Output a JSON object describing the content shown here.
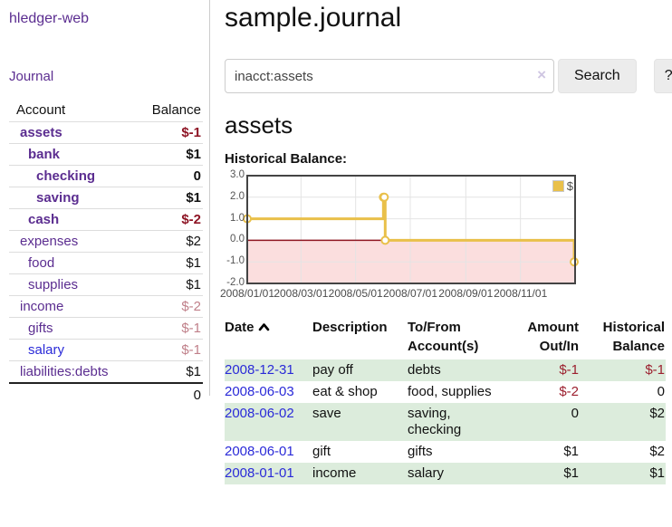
{
  "app": {
    "brand": "hledger-web",
    "nav_journal": "Journal"
  },
  "sidebar": {
    "header": {
      "account": "Account",
      "balance": "Balance"
    },
    "accounts": [
      {
        "name": "assets",
        "depth": 1,
        "balance": "$-1",
        "bold": true,
        "negative": "strong"
      },
      {
        "name": "bank",
        "depth": 2,
        "balance": "$1",
        "bold": true,
        "negative": "none"
      },
      {
        "name": "checking",
        "depth": 3,
        "balance": "0",
        "bold": true,
        "negative": "none"
      },
      {
        "name": "saving",
        "depth": 3,
        "balance": "$1",
        "bold": true,
        "negative": "none"
      },
      {
        "name": "cash",
        "depth": 2,
        "balance": "$-2",
        "bold": true,
        "negative": "strong"
      },
      {
        "name": "expenses",
        "depth": 1,
        "balance": "$2",
        "bold": false,
        "negative": "none"
      },
      {
        "name": "food",
        "depth": 2,
        "balance": "$1",
        "bold": false,
        "negative": "none"
      },
      {
        "name": "supplies",
        "depth": 2,
        "balance": "$1",
        "bold": false,
        "negative": "none"
      },
      {
        "name": "income",
        "depth": 1,
        "balance": "$-2",
        "bold": false,
        "negative": "muted"
      },
      {
        "name": "gifts",
        "depth": 2,
        "balance": "$-1",
        "bold": false,
        "negative": "muted"
      },
      {
        "name": "salary",
        "depth": 2,
        "balance": "$-1",
        "bold": false,
        "negative": "muted",
        "blue": true
      },
      {
        "name": "liabilities:debts",
        "depth": 1,
        "balance": "$1",
        "bold": false,
        "negative": "none"
      }
    ],
    "total": "0"
  },
  "header": {
    "title": "sample.journal"
  },
  "search": {
    "value": "inacct:assets",
    "clear_icon": "×",
    "search_label": "Search",
    "help_label": "?"
  },
  "account_page": {
    "title": "assets",
    "chart_label": "Historical Balance:"
  },
  "chart_data": {
    "type": "line",
    "title": "Historical Balance:",
    "legend": {
      "label": "$",
      "position": "top-right"
    },
    "x_axis": {
      "min_day": 0,
      "max_day": 366,
      "ticks": [
        {
          "day": 0,
          "label": "2008/01/01"
        },
        {
          "day": 60,
          "label": "2008/03/01"
        },
        {
          "day": 121,
          "label": "2008/05/01"
        },
        {
          "day": 182,
          "label": "2008/07/01"
        },
        {
          "day": 244,
          "label": "2008/09/01"
        },
        {
          "day": 305,
          "label": "2008/11/01"
        }
      ]
    },
    "y_axis": {
      "min": -2,
      "max": 3,
      "ticks": [
        {
          "value": 3,
          "label": "3.0"
        },
        {
          "value": 2,
          "label": "2.0"
        },
        {
          "value": 1,
          "label": "1.0"
        },
        {
          "value": 0,
          "label": "0.0"
        },
        {
          "value": -1,
          "label": "-1.0"
        },
        {
          "value": -2,
          "label": "-2.0"
        }
      ]
    },
    "series": [
      {
        "name": "$",
        "step": true,
        "color": "#e9c04a",
        "points": [
          {
            "date": "2008-01-01",
            "day": 0,
            "value": 1
          },
          {
            "date": "2008-06-01",
            "day": 152,
            "value": 2
          },
          {
            "date": "2008-06-02",
            "day": 153,
            "value": 2
          },
          {
            "date": "2008-06-03",
            "day": 154,
            "value": 0
          },
          {
            "date": "2008-12-31",
            "day": 365,
            "value": -1
          }
        ]
      }
    ],
    "colors": {
      "negative_region": "#fbdede",
      "zero_line": "#8f1722",
      "grid": "#e4e4e4",
      "plot_border": "#444444"
    }
  },
  "register": {
    "sort": "date-ascending",
    "columns": [
      {
        "label": "Date",
        "align": "left"
      },
      {
        "label": "Description",
        "align": "left"
      },
      {
        "label": "To/From\nAccount(s)",
        "align": "left"
      },
      {
        "label": "Amount\nOut/In",
        "align": "right"
      },
      {
        "label": "Historical\nBalance",
        "align": "right"
      }
    ],
    "rows": [
      {
        "date": "2008-12-31",
        "description": "pay off",
        "accounts": "debts",
        "amount": "$-1",
        "amount_negative": true,
        "balance": "$-1",
        "balance_negative": true
      },
      {
        "date": "2008-06-03",
        "description": "eat & shop",
        "accounts": "food, supplies",
        "amount": "$-2",
        "amount_negative": true,
        "balance": "0",
        "balance_negative": false
      },
      {
        "date": "2008-06-02",
        "description": "save",
        "accounts": "saving,\nchecking",
        "amount": "0",
        "amount_negative": false,
        "balance": "$2",
        "balance_negative": false
      },
      {
        "date": "2008-06-01",
        "description": "gift",
        "accounts": "gifts",
        "amount": "$1",
        "amount_negative": false,
        "balance": "$2",
        "balance_negative": false
      },
      {
        "date": "2008-01-01",
        "description": "income",
        "accounts": "salary",
        "amount": "$1",
        "amount_negative": false,
        "balance": "$1",
        "balance_negative": false
      }
    ]
  }
}
